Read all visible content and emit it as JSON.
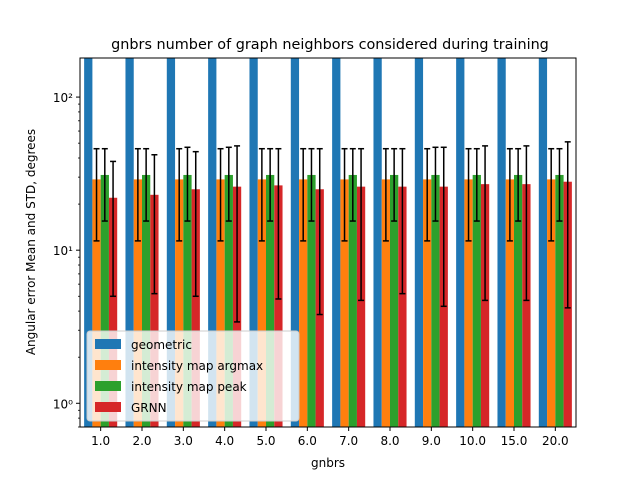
{
  "chart_data": {
    "type": "bar",
    "title": "gnbrs number of graph neighbors considered during training",
    "xlabel": "gnbrs",
    "ylabel": "Angular error Mean and STD, degrees",
    "yscale": "log",
    "ylim": [
      0.7,
      180
    ],
    "yticks": [
      {
        "value": 1,
        "label": "10⁰"
      },
      {
        "value": 10,
        "label": "10¹"
      },
      {
        "value": 100,
        "label": "10²"
      }
    ],
    "categories": [
      "1.0",
      "2.0",
      "3.0",
      "4.0",
      "5.0",
      "6.0",
      "7.0",
      "8.0",
      "9.0",
      "10.0",
      "15.0",
      "20.0"
    ],
    "legend_position": "lower-left",
    "error_bars": true,
    "series": [
      {
        "name": "geometric",
        "color": "#1f77b4",
        "values": [
          180,
          180,
          180,
          180,
          180,
          180,
          180,
          180,
          180,
          180,
          180,
          180
        ],
        "errors": [
          null,
          null,
          null,
          null,
          null,
          null,
          null,
          null,
          null,
          null,
          null,
          null
        ]
      },
      {
        "name": "intensity map argmax",
        "color": "#ff7f0e",
        "values": [
          29,
          29,
          29,
          29,
          29,
          29,
          29,
          29,
          29,
          29,
          29,
          29
        ],
        "errors": [
          [
            11.5,
            46
          ],
          [
            11.5,
            46
          ],
          [
            11.5,
            46
          ],
          [
            11.5,
            46
          ],
          [
            11.5,
            46
          ],
          [
            11.5,
            46
          ],
          [
            11.5,
            46
          ],
          [
            11.5,
            46
          ],
          [
            11.5,
            46
          ],
          [
            11.5,
            46
          ],
          [
            11.5,
            46
          ],
          [
            11.5,
            46
          ]
        ]
      },
      {
        "name": "intensity map peak",
        "color": "#2ca02c",
        "values": [
          31,
          31,
          31,
          31,
          31,
          31,
          31,
          31,
          31,
          31,
          31,
          31
        ],
        "errors": [
          [
            15.5,
            46
          ],
          [
            15.5,
            46
          ],
          [
            15.5,
            47
          ],
          [
            15.5,
            47
          ],
          [
            15.5,
            46
          ],
          [
            15.5,
            46
          ],
          [
            15.5,
            46
          ],
          [
            15.5,
            46
          ],
          [
            15.5,
            47
          ],
          [
            15.5,
            46
          ],
          [
            15.5,
            46
          ],
          [
            15.5,
            46
          ]
        ]
      },
      {
        "name": "GRNN",
        "color": "#d62728",
        "values": [
          22,
          23,
          25,
          26,
          26.5,
          25,
          26,
          26,
          26,
          27,
          27,
          28
        ],
        "errors": [
          [
            5,
            38
          ],
          [
            5.2,
            42
          ],
          [
            5,
            44
          ],
          [
            3.4,
            48
          ],
          [
            4.8,
            46
          ],
          [
            3.8,
            46
          ],
          [
            4.7,
            46
          ],
          [
            5.2,
            46
          ],
          [
            4.3,
            47
          ],
          [
            4.7,
            48
          ],
          [
            4.7,
            48
          ],
          [
            4.2,
            51
          ]
        ]
      }
    ]
  }
}
